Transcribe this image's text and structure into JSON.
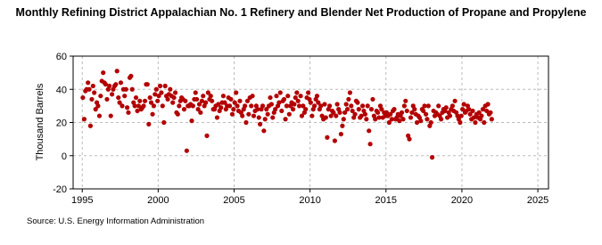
{
  "chart_data": {
    "type": "scatter",
    "title": "Monthly Refining District Appalachian No. 1 Refinery and Blender Net Production of Propane and Propylene",
    "y_label": "Thousand Barrels",
    "source": "Source: U.S. Energy Information Administration",
    "color": "#b30000",
    "grid": true,
    "xlim": [
      1994.4,
      2025.7
    ],
    "xticks": [
      1995,
      2000,
      2005,
      2010,
      2015,
      2020,
      2025
    ],
    "ylim": [
      -20,
      60
    ],
    "yticks": [
      -20,
      0,
      20,
      40,
      60
    ],
    "x": [
      1995.04,
      1995.13,
      1995.21,
      1995.29,
      1995.38,
      1995.46,
      1995.54,
      1995.63,
      1995.71,
      1995.79,
      1995.88,
      1995.96,
      1996.04,
      1996.13,
      1996.21,
      1996.29,
      1996.38,
      1996.46,
      1996.54,
      1996.63,
      1996.71,
      1996.79,
      1996.88,
      1996.96,
      1997.04,
      1997.13,
      1997.21,
      1997.29,
      1997.38,
      1997.46,
      1997.54,
      1997.63,
      1997.71,
      1997.79,
      1997.88,
      1997.96,
      1998.04,
      1998.13,
      1998.21,
      1998.29,
      1998.38,
      1998.46,
      1998.54,
      1998.63,
      1998.71,
      1998.79,
      1998.88,
      1998.96,
      1999.04,
      1999.13,
      1999.21,
      1999.29,
      1999.38,
      1999.46,
      1999.54,
      1999.63,
      1999.71,
      1999.79,
      1999.88,
      1999.96,
      2000.04,
      2000.13,
      2000.21,
      2000.29,
      2000.38,
      2000.46,
      2000.54,
      2000.63,
      2000.71,
      2000.79,
      2000.88,
      2000.96,
      2001.04,
      2001.13,
      2001.21,
      2001.29,
      2001.38,
      2001.46,
      2001.54,
      2001.63,
      2001.71,
      2001.79,
      2001.88,
      2001.96,
      2002.04,
      2002.13,
      2002.21,
      2002.29,
      2002.38,
      2002.46,
      2002.54,
      2002.63,
      2002.71,
      2002.79,
      2002.88,
      2002.96,
      2003.04,
      2003.13,
      2003.21,
      2003.29,
      2003.38,
      2003.46,
      2003.54,
      2003.63,
      2003.71,
      2003.79,
      2003.88,
      2003.96,
      2004.04,
      2004.13,
      2004.21,
      2004.29,
      2004.38,
      2004.46,
      2004.54,
      2004.63,
      2004.71,
      2004.79,
      2004.88,
      2004.96,
      2005.04,
      2005.13,
      2005.21,
      2005.29,
      2005.38,
      2005.46,
      2005.54,
      2005.63,
      2005.71,
      2005.79,
      2005.88,
      2005.96,
      2006.04,
      2006.13,
      2006.21,
      2006.29,
      2006.38,
      2006.46,
      2006.54,
      2006.63,
      2006.71,
      2006.79,
      2006.88,
      2006.96,
      2007.04,
      2007.13,
      2007.21,
      2007.29,
      2007.38,
      2007.46,
      2007.54,
      2007.63,
      2007.71,
      2007.79,
      2007.88,
      2007.96,
      2008.04,
      2008.13,
      2008.21,
      2008.29,
      2008.38,
      2008.46,
      2008.54,
      2008.63,
      2008.71,
      2008.79,
      2008.88,
      2008.96,
      2009.04,
      2009.13,
      2009.21,
      2009.29,
      2009.38,
      2009.46,
      2009.54,
      2009.63,
      2009.71,
      2009.79,
      2009.88,
      2009.96,
      2010.04,
      2010.13,
      2010.21,
      2010.29,
      2010.38,
      2010.46,
      2010.54,
      2010.63,
      2010.71,
      2010.79,
      2010.88,
      2010.96,
      2011.04,
      2011.13,
      2011.21,
      2011.29,
      2011.38,
      2011.46,
      2011.54,
      2011.63,
      2011.71,
      2011.79,
      2011.88,
      2011.96,
      2012.04,
      2012.13,
      2012.21,
      2012.29,
      2012.38,
      2012.46,
      2012.54,
      2012.63,
      2012.71,
      2012.79,
      2012.88,
      2012.96,
      2013.04,
      2013.13,
      2013.21,
      2013.29,
      2013.38,
      2013.46,
      2013.54,
      2013.63,
      2013.71,
      2013.79,
      2013.88,
      2013.96,
      2014.04,
      2014.13,
      2014.21,
      2014.29,
      2014.38,
      2014.46,
      2014.54,
      2014.63,
      2014.71,
      2014.79,
      2014.88,
      2014.96,
      2015.04,
      2015.13,
      2015.21,
      2015.29,
      2015.38,
      2015.46,
      2015.54,
      2015.63,
      2015.71,
      2015.79,
      2015.88,
      2015.96,
      2016.04,
      2016.13,
      2016.21,
      2016.29,
      2016.38,
      2016.46,
      2016.54,
      2016.63,
      2016.71,
      2016.79,
      2016.88,
      2016.96,
      2017.04,
      2017.13,
      2017.21,
      2017.29,
      2017.38,
      2017.46,
      2017.54,
      2017.63,
      2017.71,
      2017.79,
      2017.88,
      2017.96,
      2018.04,
      2018.13,
      2018.21,
      2018.29,
      2018.38,
      2018.46,
      2018.54,
      2018.63,
      2018.71,
      2018.79,
      2018.88,
      2018.96,
      2019.04,
      2019.13,
      2019.21,
      2019.29,
      2019.38,
      2019.46,
      2019.54,
      2019.63,
      2019.71,
      2019.79,
      2019.88,
      2019.96,
      2020.04,
      2020.13,
      2020.21,
      2020.29,
      2020.38,
      2020.46,
      2020.54,
      2020.63,
      2020.71,
      2020.79,
      2020.88,
      2020.96,
      2021.04,
      2021.13,
      2021.21,
      2021.29,
      2021.38,
      2021.46,
      2021.54,
      2021.63,
      2021.71,
      2021.79,
      2021.88,
      2021.96
    ],
    "values": [
      35,
      22,
      39,
      40,
      44,
      40,
      18,
      34,
      42,
      38,
      28,
      32,
      30,
      24,
      36,
      45,
      50,
      44,
      43,
      34,
      40,
      42,
      24,
      37,
      40,
      42,
      43,
      51,
      35,
      32,
      44,
      30,
      40,
      36,
      40,
      29,
      26,
      47,
      48,
      40,
      32,
      30,
      35,
      27,
      30,
      33,
      28,
      29,
      30,
      33,
      43,
      43,
      19,
      35,
      32,
      25,
      30,
      37,
      40,
      33,
      36,
      42,
      38,
      30,
      20,
      42,
      36,
      34,
      37,
      40,
      36,
      32,
      35,
      38,
      26,
      25,
      30,
      33,
      35,
      34,
      28,
      33,
      3,
      30,
      30,
      31,
      21,
      30,
      34,
      38,
      34,
      28,
      31,
      26,
      33,
      36,
      30,
      32,
      12,
      38,
      34,
      36,
      33,
      28,
      28,
      30,
      23,
      31,
      27,
      29,
      32,
      36,
      32,
      28,
      30,
      35,
      30,
      34,
      25,
      28,
      32,
      38,
      30,
      27,
      33,
      26,
      24,
      28,
      30,
      20,
      33,
      25,
      35,
      30,
      36,
      24,
      27,
      30,
      28,
      23,
      19,
      28,
      30,
      15,
      22,
      28,
      25,
      30,
      35,
      31,
      23,
      26,
      28,
      36,
      30,
      32,
      38,
      27,
      33,
      34,
      22,
      30,
      36,
      25,
      30,
      32,
      28,
      31,
      35,
      38,
      33,
      30,
      36,
      24,
      30,
      26,
      28,
      35,
      38,
      34,
      32,
      24,
      28,
      30,
      34,
      36,
      32,
      28,
      30,
      24,
      22,
      31,
      23,
      11,
      28,
      30,
      24,
      27,
      26,
      9,
      24,
      31,
      28,
      26,
      13,
      18,
      22,
      26,
      31,
      28,
      34,
      38,
      30,
      27,
      23,
      25,
      33,
      32,
      28,
      23,
      24,
      30,
      27,
      25,
      22,
      30,
      15,
      7,
      28,
      34,
      24,
      22,
      27,
      26,
      23,
      30,
      28,
      23,
      26,
      24,
      26,
      24,
      20,
      25,
      22,
      27,
      28,
      22,
      23,
      25,
      21,
      24,
      26,
      22,
      30,
      33,
      27,
      12,
      10,
      23,
      26,
      30,
      28,
      25,
      20,
      24,
      23,
      21,
      28,
      27,
      30,
      25,
      22,
      30,
      18,
      20,
      -1,
      27,
      24,
      26,
      25,
      30,
      24,
      22,
      26,
      28,
      27,
      29,
      23,
      26,
      24,
      28,
      30,
      27,
      33,
      26,
      24,
      22,
      20,
      24,
      28,
      31,
      26,
      27,
      30,
      28,
      25,
      22,
      27,
      23,
      20,
      25,
      23,
      26,
      22,
      24,
      28,
      20,
      30,
      27,
      31,
      25,
      26,
      22
    ]
  }
}
